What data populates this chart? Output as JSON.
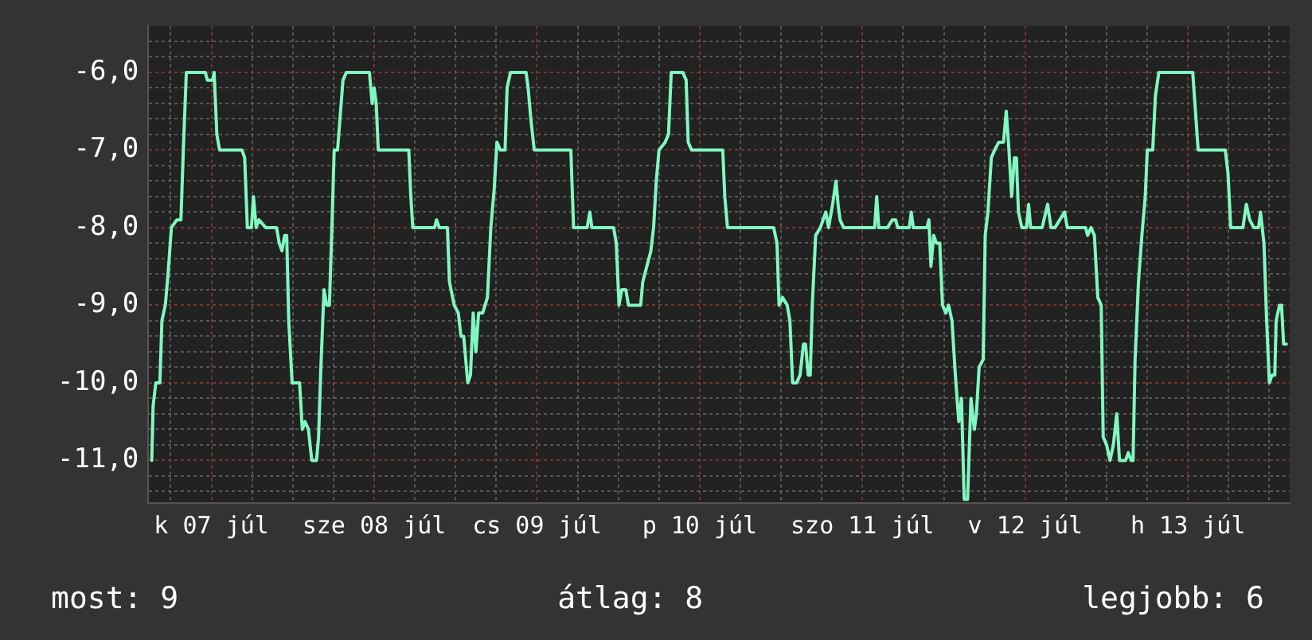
{
  "chart_data": {
    "type": "line",
    "x": [
      "--07-07T03:12",
      "--07-07T03:24",
      "--07-07T03:48",
      "--07-07T04:24",
      "--07-07T04:42",
      "--07-07T05:12",
      "--07-07T05:36",
      "--07-07T06:06",
      "--07-07T06:54",
      "--07-07T07:30",
      "--07-07T07:54",
      "--07-07T08:18",
      "--07-07T11:06",
      "--07-07T11:24",
      "--07-07T12:12",
      "--07-07T12:24",
      "--07-07T12:48",
      "--07-07T13:12",
      "--07-07T16:30",
      "--07-07T16:54",
      "--07-07T17:18",
      "--07-07T17:54",
      "--07-07T18:12",
      "--07-07T18:36",
      "--07-07T19:00",
      "--07-07T20:00",
      "--07-07T21:36",
      "--07-07T22:00",
      "--07-07T22:24",
      "--07-07T22:48",
      "--07-07T23:06",
      "--07-07T23:24",
      "--07-07T23:54",
      "--07-08T01:00",
      "--07-08T01:24",
      "--07-08T01:48",
      "--07-08T02:18",
      "--07-08T02:48",
      "--07-08T03:30",
      "--07-08T03:48",
      "--07-08T04:06",
      "--07-08T04:36",
      "--07-08T05:00",
      "--07-08T05:24",
      "--07-08T05:48",
      "--07-08T06:06",
      "--07-08T06:36",
      "--07-08T07:24",
      "--07-08T07:54",
      "--07-08T11:18",
      "--07-08T11:42",
      "--07-08T12:00",
      "--07-08T12:18",
      "--07-08T12:36",
      "--07-08T17:06",
      "--07-08T17:24",
      "--07-08T17:42",
      "--07-08T20:54",
      "--07-08T21:12",
      "--07-08T21:36",
      "--07-08T22:48",
      "--07-08T23:06",
      "--07-08T23:48",
      "--07-09T00:24",
      "--07-09T00:48",
      "--07-09T01:12",
      "--07-09T01:48",
      "--07-09T02:12",
      "--07-09T02:36",
      "--07-09T03:00",
      "--07-09T03:24",
      "--07-09T04:00",
      "--07-09T04:42",
      "--07-09T05:12",
      "--07-09T05:42",
      "--07-09T06:06",
      "--07-09T06:36",
      "--07-09T07:18",
      "--07-09T07:36",
      "--07-09T08:06",
      "--07-09T10:24",
      "--07-09T10:42",
      "--07-09T11:06",
      "--07-09T11:36",
      "--07-09T17:00",
      "--07-09T17:24",
      "--07-09T19:24",
      "--07-09T19:48",
      "--07-09T20:06",
      "--07-09T23:18",
      "--07-09T23:42",
      "--07-10T00:06",
      "--07-10T00:30",
      "--07-10T01:06",
      "--07-10T01:30",
      "--07-10T03:18",
      "--07-10T03:36",
      "--07-10T04:12",
      "--07-10T04:48",
      "--07-10T05:12",
      "--07-10T05:36",
      "--07-10T06:00",
      "--07-10T06:54",
      "--07-10T07:24",
      "--07-10T07:48",
      "--07-10T09:30",
      "--07-10T10:00",
      "--07-10T10:18",
      "--07-10T10:48",
      "--07-10T15:24",
      "--07-10T15:42",
      "--07-10T16:06",
      "--07-10T22:54",
      "--07-10T23:24",
      "--07-10T23:42",
      "--07-11T00:12",
      "--07-11T00:54",
      "--07-11T01:18",
      "--07-11T01:42",
      "--07-11T02:18",
      "--07-11T02:48",
      "--07-11T03:18",
      "--07-11T03:36",
      "--07-11T04:00",
      "--07-11T04:18",
      "--07-11T04:36",
      "--07-11T05:06",
      "--07-11T05:48",
      "--07-11T06:36",
      "--07-11T07:00",
      "--07-11T07:36",
      "--07-11T08:06",
      "--07-11T08:24",
      "--07-11T08:42",
      "--07-11T09:12",
      "--07-11T13:48",
      "--07-11T14:06",
      "--07-11T14:24",
      "--07-11T15:42",
      "--07-11T16:24",
      "--07-11T16:54",
      "--07-11T17:12",
      "--07-11T18:54",
      "--07-11T19:12",
      "--07-11T19:30",
      "--07-11T21:30",
      "--07-11T21:48",
      "--07-11T22:06",
      "--07-11T22:30",
      "--07-11T22:54",
      "--07-11T23:24",
      "--07-11T23:48",
      "--07-12T00:18",
      "--07-12T00:42",
      "--07-12T01:12",
      "--07-12T01:42",
      "--07-12T02:12",
      "--07-12T02:36",
      "--07-12T03:00",
      "--07-12T03:30",
      "--07-12T04:00",
      "--07-12T04:30",
      "--07-12T04:48",
      "--07-12T05:12",
      "--07-12T05:48",
      "--07-12T06:06",
      "--07-12T06:30",
      "--07-12T07:00",
      "--07-12T07:30",
      "--07-12T08:06",
      "--07-12T08:48",
      "--07-12T09:12",
      "--07-12T09:36",
      "--07-12T10:00",
      "--07-12T10:24",
      "--07-12T10:42",
      "--07-12T11:00",
      "--07-12T11:30",
      "--07-12T12:12",
      "--07-12T12:30",
      "--07-12T12:48",
      "--07-12T14:30",
      "--07-12T15:18",
      "--07-12T15:48",
      "--07-12T16:24",
      "--07-12T17:06",
      "--07-12T17:48",
      "--07-12T18:12",
      "--07-12T20:54",
      "--07-12T21:12",
      "--07-12T21:42",
      "--07-12T22:12",
      "--07-12T22:42",
      "--07-12T23:12",
      "--07-12T23:30",
      "--07-13T00:00",
      "--07-13T00:30",
      "--07-13T01:00",
      "--07-13T01:30",
      "--07-13T01:54",
      "--07-13T02:48",
      "--07-13T03:12",
      "--07-13T03:36",
      "--07-13T03:54",
      "--07-13T04:12",
      "--07-13T04:42",
      "--07-13T05:12",
      "--07-13T05:42",
      "--07-13T06:00",
      "--07-13T06:48",
      "--07-13T07:12",
      "--07-13T07:42",
      "--07-13T12:42",
      "--07-13T13:06",
      "--07-13T13:30",
      "--07-13T17:30",
      "--07-13T17:54",
      "--07-13T18:18",
      "--07-13T20:06",
      "--07-13T20:36",
      "--07-13T21:06",
      "--07-13T21:42",
      "--07-13T22:24",
      "--07-13T22:42",
      "--07-13T23:12",
      "--07-13T23:36",
      "--07-14T00:00",
      "--07-14T00:24",
      "--07-14T00:48",
      "--07-14T01:00",
      "--07-14T01:30",
      "--07-14T01:48",
      "--07-14T02:06",
      "--07-14T02:30"
    ],
    "series": [
      {
        "color": "#80f8c0",
        "values": [
          -11.0,
          -10.3,
          -10.0,
          -10.0,
          -9.2,
          -9.0,
          -8.6,
          -8.0,
          -7.9,
          -7.9,
          -6.9,
          -6.0,
          -6.0,
          -6.1,
          -6.1,
          -6.0,
          -6.8,
          -7.0,
          -7.0,
          -7.1,
          -8.0,
          -8.0,
          -7.6,
          -8.0,
          -7.9,
          -8.0,
          -8.0,
          -8.2,
          -8.3,
          -8.1,
          -8.1,
          -9.2,
          -10.0,
          -10.0,
          -10.6,
          -10.5,
          -10.6,
          -11.0,
          -11.0,
          -10.7,
          -9.9,
          -8.8,
          -9.0,
          -9.0,
          -7.9,
          -7.0,
          -7.0,
          -6.1,
          -6.0,
          -6.0,
          -6.4,
          -6.2,
          -6.4,
          -7.0,
          -7.0,
          -7.6,
          -8.0,
          -8.0,
          -7.9,
          -8.0,
          -8.0,
          -8.7,
          -9.0,
          -9.1,
          -9.4,
          -9.4,
          -10.0,
          -9.9,
          -9.1,
          -9.6,
          -9.1,
          -9.1,
          -8.9,
          -8.0,
          -7.5,
          -6.9,
          -7.0,
          -7.0,
          -6.2,
          -6.0,
          -6.0,
          -6.2,
          -6.6,
          -7.0,
          -7.0,
          -8.0,
          -8.0,
          -7.8,
          -8.0,
          -8.0,
          -8.2,
          -9.0,
          -8.8,
          -8.8,
          -9.0,
          -9.0,
          -8.7,
          -8.5,
          -8.3,
          -8.0,
          -7.4,
          -7.0,
          -6.9,
          -6.8,
          -6.0,
          -6.0,
          -6.1,
          -6.9,
          -7.0,
          -7.0,
          -7.6,
          -8.0,
          -8.0,
          -8.2,
          -9.0,
          -8.9,
          -9.0,
          -9.2,
          -10.0,
          -10.0,
          -9.9,
          -9.5,
          -9.5,
          -9.9,
          -9.9,
          -9.0,
          -8.1,
          -8.0,
          -7.8,
          -8.0,
          -7.7,
          -7.4,
          -7.7,
          -7.9,
          -8.0,
          -8.0,
          -7.6,
          -8.0,
          -8.0,
          -7.9,
          -7.9,
          -8.0,
          -8.0,
          -7.8,
          -8.0,
          -8.0,
          -7.9,
          -8.5,
          -8.1,
          -8.2,
          -8.2,
          -9.0,
          -9.1,
          -9.0,
          -9.2,
          -9.9,
          -10.5,
          -10.2,
          -11.5,
          -11.5,
          -10.2,
          -10.6,
          -10.4,
          -9.8,
          -9.7,
          -8.1,
          -7.8,
          -7.1,
          -7.0,
          -6.9,
          -6.9,
          -6.5,
          -7.0,
          -7.6,
          -7.1,
          -7.1,
          -7.8,
          -8.0,
          -8.0,
          -7.7,
          -8.0,
          -8.0,
          -7.7,
          -8.0,
          -8.0,
          -7.9,
          -7.8,
          -8.0,
          -8.0,
          -8.1,
          -8.0,
          -8.1,
          -8.9,
          -9.0,
          -10.7,
          -10.8,
          -11.0,
          -10.8,
          -10.4,
          -11.0,
          -11.0,
          -10.9,
          -11.0,
          -11.0,
          -9.7,
          -8.7,
          -8.1,
          -7.6,
          -7.0,
          -7.0,
          -6.3,
          -6.0,
          -6.0,
          -6.5,
          -7.0,
          -7.0,
          -7.3,
          -8.0,
          -8.0,
          -7.7,
          -7.9,
          -8.0,
          -8.0,
          -7.8,
          -8.2,
          -9.2,
          -10.0,
          -9.9,
          -9.9,
          -9.2,
          -9.0,
          -9.0,
          -9.5,
          -9.5
        ]
      }
    ],
    "xlim": [
      "--07-07T02:42",
      "--07-14T03:00"
    ],
    "xticks": [
      {
        "value": "--07-07T06:00",
        "label": null
      },
      {
        "value": "--07-07T12:00",
        "label": "k 07 júl"
      },
      {
        "value": "--07-07T18:00",
        "label": null
      },
      {
        "value": "--07-08T00:00",
        "label": null
      },
      {
        "value": "--07-08T06:00",
        "label": null
      },
      {
        "value": "--07-08T12:00",
        "label": "sze 08 júl"
      },
      {
        "value": "--07-08T18:00",
        "label": null
      },
      {
        "value": "--07-09T00:00",
        "label": null
      },
      {
        "value": "--07-09T06:00",
        "label": null
      },
      {
        "value": "--07-09T12:00",
        "label": "cs 09 júl"
      },
      {
        "value": "--07-09T18:00",
        "label": null
      },
      {
        "value": "--07-10T00:00",
        "label": null
      },
      {
        "value": "--07-10T06:00",
        "label": null
      },
      {
        "value": "--07-10T12:00",
        "label": "p 10 júl"
      },
      {
        "value": "--07-10T18:00",
        "label": null
      },
      {
        "value": "--07-11T00:00",
        "label": null
      },
      {
        "value": "--07-11T06:00",
        "label": null
      },
      {
        "value": "--07-11T12:00",
        "label": "szo 11 júl"
      },
      {
        "value": "--07-11T18:00",
        "label": null
      },
      {
        "value": "--07-12T00:00",
        "label": null
      },
      {
        "value": "--07-12T06:00",
        "label": null
      },
      {
        "value": "--07-12T12:00",
        "label": "v 12 júl"
      },
      {
        "value": "--07-12T18:00",
        "label": null
      },
      {
        "value": "--07-13T00:00",
        "label": null
      },
      {
        "value": "--07-13T06:00",
        "label": null
      },
      {
        "value": "--07-13T12:00",
        "label": "h 13 júl"
      },
      {
        "value": "--07-13T18:00",
        "label": null
      },
      {
        "value": "--07-14T00:00",
        "label": null
      }
    ],
    "ylim": [
      -11.55,
      -5.4
    ],
    "yticks": [
      {
        "value": -11.4,
        "label": null
      },
      {
        "value": -11.2,
        "label": null
      },
      {
        "value": -11,
        "label": "-11,0"
      },
      {
        "value": -10.8,
        "label": null
      },
      {
        "value": -10.6,
        "label": null
      },
      {
        "value": -10.4,
        "label": null
      },
      {
        "value": -10.2,
        "label": null
      },
      {
        "value": -10,
        "label": "-10,0"
      },
      {
        "value": -9.8,
        "label": null
      },
      {
        "value": -9.6,
        "label": null
      },
      {
        "value": -9.4,
        "label": null
      },
      {
        "value": -9.2,
        "label": null
      },
      {
        "value": -9,
        "label": "-9,0"
      },
      {
        "value": -8.8,
        "label": null
      },
      {
        "value": -8.6,
        "label": null
      },
      {
        "value": -8.4,
        "label": null
      },
      {
        "value": -8.2,
        "label": null
      },
      {
        "value": -8,
        "label": "-8,0"
      },
      {
        "value": -7.8,
        "label": null
      },
      {
        "value": -7.6,
        "label": null
      },
      {
        "value": -7.4,
        "label": null
      },
      {
        "value": -7.2,
        "label": null
      },
      {
        "value": -7,
        "label": "-7,0"
      },
      {
        "value": -6.8,
        "label": null
      },
      {
        "value": -6.6,
        "label": null
      },
      {
        "value": -6.4,
        "label": null
      },
      {
        "value": -6.2,
        "label": null
      },
      {
        "value": -6,
        "label": "-6,0"
      },
      {
        "value": -5.8,
        "label": null
      },
      {
        "value": -5.6,
        "label": null
      }
    ],
    "grid": true,
    "marker": "none",
    "line_style": "solid",
    "annotations": [
      "most: 9",
      "átlag: 8",
      "legjobb: 6"
    ]
  }
}
